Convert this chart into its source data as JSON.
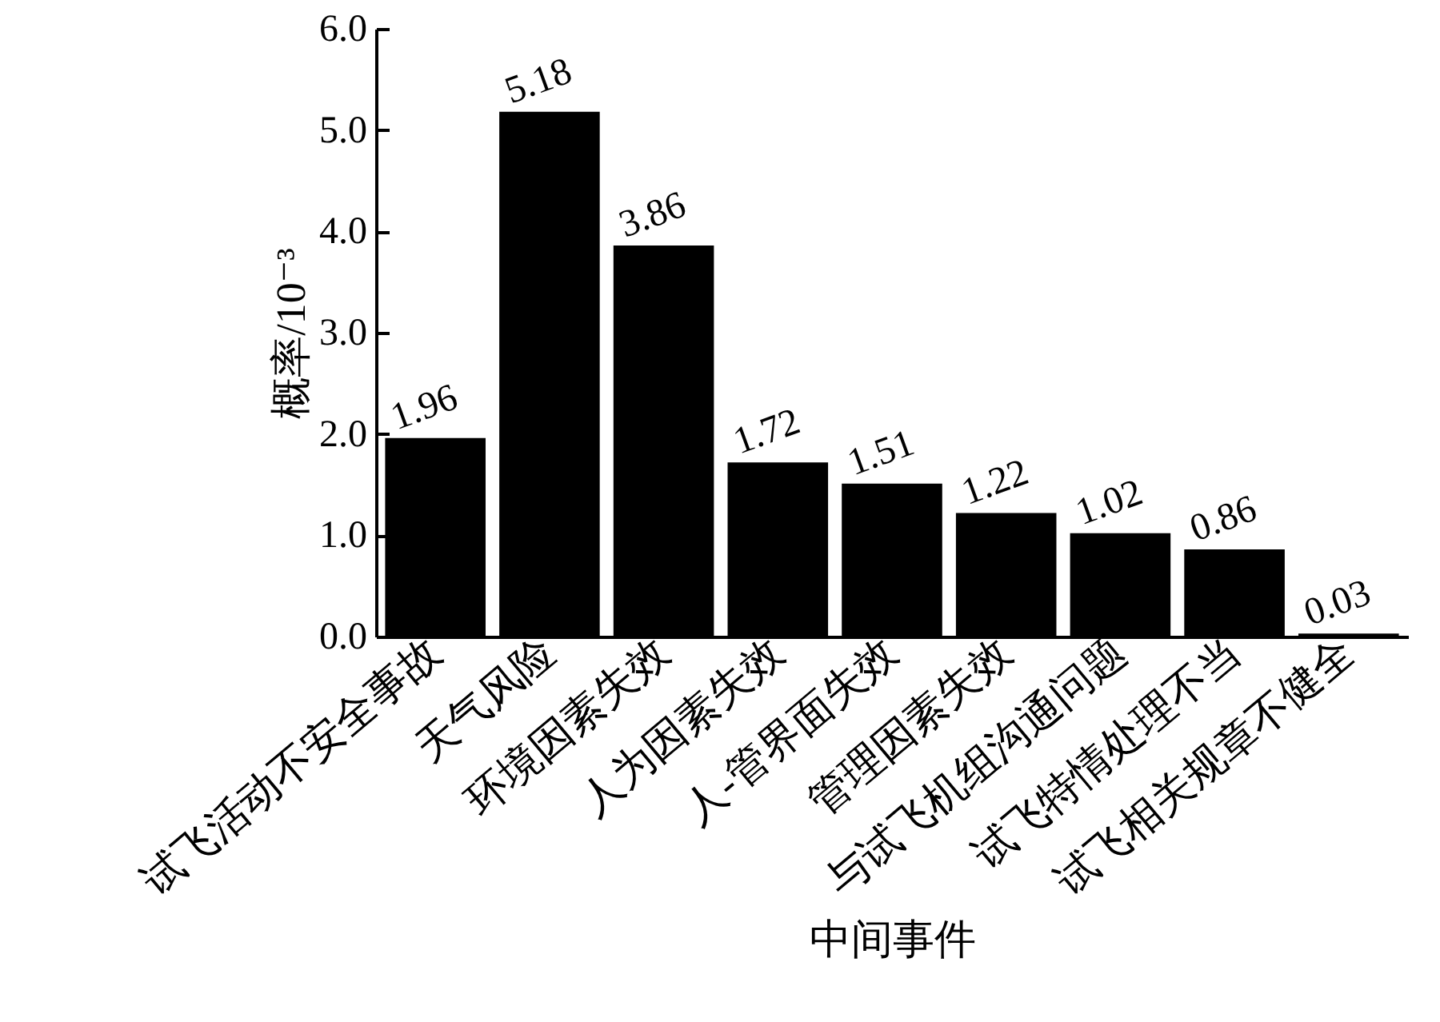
{
  "chart_data": {
    "type": "bar",
    "xlabel": "中间事件",
    "ylabel": "概率/10⁻³",
    "categories": [
      "试飞活动不安全事故",
      "天气风险",
      "环境因素失效",
      "人为因素失效",
      "人-管界面失效",
      "管理因素失效",
      "与试飞机组沟通问题",
      "试飞特情处理不当",
      "试飞相关规章不健全"
    ],
    "values": [
      1.96,
      5.18,
      3.86,
      1.72,
      1.51,
      1.22,
      1.02,
      0.86,
      0.03
    ],
    "color": "#000000",
    "data_labels": true,
    "grid": false,
    "ylim": [
      0,
      6
    ],
    "yticks": [
      {
        "value": 0,
        "label": "0.0"
      },
      {
        "value": 1,
        "label": "1.0"
      },
      {
        "value": 2,
        "label": "2.0"
      },
      {
        "value": 3,
        "label": "3.0"
      },
      {
        "value": 4,
        "label": "4.0"
      },
      {
        "value": 5,
        "label": "5.0"
      },
      {
        "value": 6,
        "label": "6.0"
      }
    ]
  }
}
